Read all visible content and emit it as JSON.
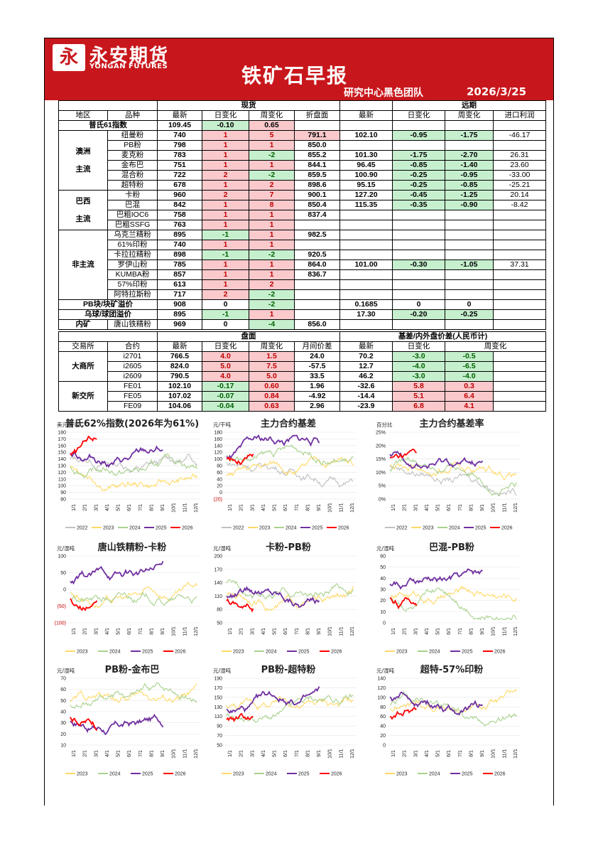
{
  "header": {
    "logo_mark": "永",
    "brand_cn": "永安期货",
    "brand_en": "YONGAN FUTURES",
    "title": "铁矿石早报",
    "team": "研究中心黑色团队",
    "date": "2026/3/25"
  },
  "spot": {
    "group_spot": "现货",
    "group_far": "远期",
    "cols": [
      "地区",
      "品种",
      "最新",
      "日变化",
      "周变化",
      "折盘面",
      "最新",
      "日变化",
      "周变化",
      "进口利润"
    ],
    "platts": {
      "label": "普氏61指数",
      "latest": "109.45",
      "day": "-0.10",
      "week": "0.65"
    },
    "regions": [
      {
        "name1": "澳洲",
        "name2": "主流",
        "rows": [
          {
            "p": "纽曼粉",
            "l": "740",
            "d": "1",
            "w": "5",
            "z": "791.1",
            "fl": "102.10",
            "fd": "-0.95",
            "fw": "-1.75",
            "ip": "-46.17"
          },
          {
            "p": "PB粉",
            "l": "798",
            "d": "1",
            "w": "1",
            "z": "850.0",
            "fl": "",
            "fd": "",
            "fw": "",
            "ip": ""
          },
          {
            "p": "麦克粉",
            "l": "783",
            "d": "1",
            "w": "-2",
            "z": "855.2",
            "fl": "101.30",
            "fd": "-1.75",
            "fw": "-2.70",
            "ip": "26.31"
          },
          {
            "p": "金布巴",
            "l": "751",
            "d": "1",
            "w": "1",
            "z": "844.1",
            "fl": "96.45",
            "fd": "-0.85",
            "fw": "-1.40",
            "ip": "23.60"
          },
          {
            "p": "混合粉",
            "l": "722",
            "d": "2",
            "w": "-2",
            "z": "859.5",
            "fl": "100.90",
            "fd": "-0.25",
            "fw": "-0.95",
            "ip": "-33.00"
          },
          {
            "p": "超特粉",
            "l": "678",
            "d": "1",
            "w": "2",
            "z": "898.6",
            "fl": "95.15",
            "fd": "-0.25",
            "fw": "-0.85",
            "ip": "-25.21"
          }
        ]
      },
      {
        "name1": "巴西",
        "name2": "主流",
        "rows": [
          {
            "p": "卡粉",
            "l": "960",
            "d": "2",
            "w": "7",
            "z": "900.1",
            "fl": "127.20",
            "fd": "-0.45",
            "fw": "-1.25",
            "ip": "20.14"
          },
          {
            "p": "巴混",
            "l": "842",
            "d": "1",
            "w": "8",
            "z": "850.4",
            "fl": "115.35",
            "fd": "-0.35",
            "fw": "-0.90",
            "ip": "-8.42"
          },
          {
            "p": "巴粗IOC6",
            "l": "758",
            "d": "1",
            "w": "1",
            "z": "837.4",
            "fl": "",
            "fd": "",
            "fw": "",
            "ip": ""
          },
          {
            "p": "巴粗SSFG",
            "l": "763",
            "d": "1",
            "w": "1",
            "z": "",
            "fl": "",
            "fd": "",
            "fw": "",
            "ip": ""
          }
        ]
      },
      {
        "name1": "非主流",
        "name2": "",
        "rows": [
          {
            "p": "乌克兰精粉",
            "l": "895",
            "d": "-1",
            "w": "1",
            "z": "982.5",
            "fl": "",
            "fd": "",
            "fw": "",
            "ip": ""
          },
          {
            "p": "61%印粉",
            "l": "740",
            "d": "1",
            "w": "1",
            "z": "",
            "fl": "",
            "fd": "",
            "fw": "",
            "ip": ""
          },
          {
            "p": "卡拉拉精粉",
            "l": "898",
            "d": "-1",
            "w": "-2",
            "z": "920.5",
            "fl": "",
            "fd": "",
            "fw": "",
            "ip": ""
          },
          {
            "p": "罗伊山粉",
            "l": "785",
            "d": "1",
            "w": "1",
            "z": "864.0",
            "fl": "101.00",
            "fd": "-0.30",
            "fw": "-1.05",
            "ip": "37.31"
          },
          {
            "p": "KUMBA粉",
            "l": "857",
            "d": "1",
            "w": "1",
            "z": "836.7",
            "fl": "",
            "fd": "",
            "fw": "",
            "ip": ""
          },
          {
            "p": "57%印粉",
            "l": "613",
            "d": "1",
            "w": "2",
            "z": "",
            "fl": "",
            "fd": "",
            "fw": "",
            "ip": ""
          },
          {
            "p": "阿特拉斯粉",
            "l": "717",
            "d": "2",
            "w": "-2",
            "z": "",
            "fl": "",
            "fd": "",
            "fw": "",
            "ip": ""
          }
        ]
      }
    ],
    "premiums": [
      {
        "label": "PB块/块矿溢价",
        "l": "908",
        "d": "0",
        "w": "-2",
        "z": "",
        "fl": "0.1685",
        "fd": "0",
        "fw": "0"
      },
      {
        "label": "乌球/球团溢价",
        "l": "895",
        "d": "-1",
        "w": "1",
        "z": "",
        "fl": "17.30",
        "fd": "-0.20",
        "fw": "-0.25"
      }
    ],
    "domestic": {
      "label": "内矿",
      "p": "唐山铁精粉",
      "l": "969",
      "d": "0",
      "w": "-4",
      "z": "856.0"
    }
  },
  "futures": {
    "group_left": "盘面",
    "group_right": "基差/内外盘价差(人民币计)",
    "cols": [
      "交易所",
      "合约",
      "最新",
      "日变化",
      "周变化",
      "月间价差",
      "最新",
      "日变化",
      "周变化"
    ],
    "exchanges": [
      {
        "name": "大商所",
        "rows": [
          {
            "c": "i2701",
            "l": "766.5",
            "d": "4.0",
            "w": "1.5",
            "m": "24.0",
            "bl": "70.2",
            "bd": "-3.0",
            "bw": "-0.5"
          },
          {
            "c": "i2605",
            "l": "824.0",
            "d": "5.0",
            "w": "7.5",
            "m": "-57.5",
            "bl": "12.7",
            "bd": "-4.0",
            "bw": "-6.5"
          },
          {
            "c": "i2609",
            "l": "790.5",
            "d": "4.0",
            "w": "5.0",
            "m": "33.5",
            "bl": "46.2",
            "bd": "-3.0",
            "bw": "-4.0"
          }
        ]
      },
      {
        "name": "新交所",
        "rows": [
          {
            "c": "FE01",
            "l": "102.10",
            "d": "-0.17",
            "w": "0.60",
            "m": "1.96",
            "bl": "-32.6",
            "bd": "5.8",
            "bw": "0.3"
          },
          {
            "c": "FE05",
            "l": "107.02",
            "d": "-0.07",
            "w": "0.84",
            "m": "-4.92",
            "bl": "-14.4",
            "bd": "5.1",
            "bw": "6.4"
          },
          {
            "c": "FE09",
            "l": "104.06",
            "d": "-0.04",
            "w": "0.63",
            "m": "2.96",
            "bl": "-23.9",
            "bd": "6.8",
            "bw": "4.1"
          }
        ]
      }
    ]
  },
  "colors": {
    "2022": "#bfbfbf",
    "2023": "#ffd966",
    "2024": "#a9d18e",
    "2025": "#7030a0",
    "2026": "#ff0000"
  },
  "charts": [
    {
      "title": "普氏62%指数(2026年为61%)",
      "unit": "美元/干吨",
      "yticks": [
        "180",
        "170",
        "160",
        "150",
        "140",
        "130",
        "120",
        "110",
        "100",
        "90",
        "80"
      ],
      "xticks": [
        "1/1",
        "2/1",
        "3/1",
        "4/1",
        "5/1",
        "6/1",
        "7/1",
        "8/1",
        "9/1",
        "10/1",
        "11/1",
        "12/1"
      ],
      "legend": [
        "2022",
        "2023",
        "2024",
        "2025",
        "2026"
      ]
    },
    {
      "title": "主力合约基差",
      "unit": "元/干吨",
      "yticks": [
        "180",
        "160",
        "140",
        "120",
        "100",
        "80",
        "60",
        "40",
        "20",
        "0",
        "(20)"
      ],
      "xticks": [
        "1/1",
        "2/1",
        "3/1",
        "4/1",
        "5/1",
        "6/1",
        "7/1",
        "8/1",
        "9/1",
        "10/1",
        "11/1",
        "12/1"
      ],
      "legend": [
        "2022",
        "2023",
        "2024",
        "2025",
        "2026"
      ]
    },
    {
      "title": "主力合约基差率",
      "unit": "百分比",
      "yticks": [
        "25%",
        "20%",
        "15%",
        "10%",
        "5%",
        "0%"
      ],
      "xticks": [
        "1/1",
        "2/1",
        "3/1",
        "4/1",
        "5/1",
        "6/1",
        "7/1",
        "8/1",
        "9/1",
        "10/1",
        "11/1",
        "12/1"
      ],
      "legend": [
        "2022",
        "2023",
        "2024",
        "2025",
        "2026"
      ]
    },
    {
      "title": "唐山铁精粉-卡粉",
      "unit": "元/湿吨",
      "yticks": [
        "100",
        "50",
        "0",
        "(50)",
        "(100)"
      ],
      "xticks": [
        "1/1",
        "2/1",
        "3/1",
        "4/1",
        "5/1",
        "6/1",
        "7/1",
        "8/1",
        "9/1",
        "10/1",
        "11/1",
        "12/1"
      ],
      "legend": [
        "2023",
        "2024",
        "2025",
        "2026"
      ]
    },
    {
      "title": "卡粉-PB粉",
      "unit": "元/湿吨",
      "yticks": [
        "200",
        "170",
        "140",
        "110",
        "80",
        "50"
      ],
      "xticks": [
        "1/1",
        "2/1",
        "3/1",
        "4/1",
        "5/1",
        "6/1",
        "7/1",
        "8/1",
        "9/1",
        "10/1",
        "11/1",
        "12/1"
      ],
      "legend": [
        "2023",
        "2024",
        "2025",
        "2026"
      ]
    },
    {
      "title": "巴混-PB粉",
      "unit": "元/湿吨",
      "yticks": [
        "60",
        "50",
        "40",
        "30",
        "20",
        "10",
        "0"
      ],
      "xticks": [
        "1/1",
        "2/1",
        "3/1",
        "4/1",
        "5/1",
        "6/1",
        "7/1",
        "8/1",
        "9/1",
        "10/1",
        "11/1",
        "12/1"
      ],
      "legend": [
        "2023",
        "2024",
        "2025",
        "2026"
      ]
    },
    {
      "title": "PB粉-金布巴",
      "unit": "元/湿吨",
      "yticks": [
        "70",
        "60",
        "50",
        "40",
        "30",
        "20",
        "10"
      ],
      "xticks": [
        "1/1",
        "2/1",
        "3/1",
        "4/1",
        "5/1",
        "6/1",
        "7/1",
        "8/1",
        "9/1",
        "10/1",
        "11/1",
        "12/1"
      ],
      "legend": [
        "2023",
        "2024",
        "2025",
        "2026"
      ]
    },
    {
      "title": "PB粉-超特粉",
      "unit": "元/湿吨",
      "yticks": [
        "190",
        "170",
        "150",
        "130",
        "110",
        "90",
        "70",
        "50"
      ],
      "xticks": [
        "1/1",
        "2/1",
        "3/1",
        "4/1",
        "5/1",
        "6/1",
        "7/1",
        "8/1",
        "9/1",
        "10/1",
        "11/1",
        "12/1"
      ],
      "legend": [
        "2023",
        "2024",
        "2025",
        "2026"
      ]
    },
    {
      "title": "超特-57%印粉",
      "unit": "元/湿吨",
      "yticks": [
        "140",
        "120",
        "100",
        "80",
        "60",
        "40",
        "20",
        "0"
      ],
      "xticks": [
        "1/1",
        "2/1",
        "3/1",
        "4/1",
        "5/1",
        "6/1",
        "7/1",
        "8/1",
        "9/1",
        "10/1",
        "11/1",
        "12/1"
      ],
      "legend": [
        "2023",
        "2024",
        "2025",
        "2026"
      ]
    }
  ]
}
